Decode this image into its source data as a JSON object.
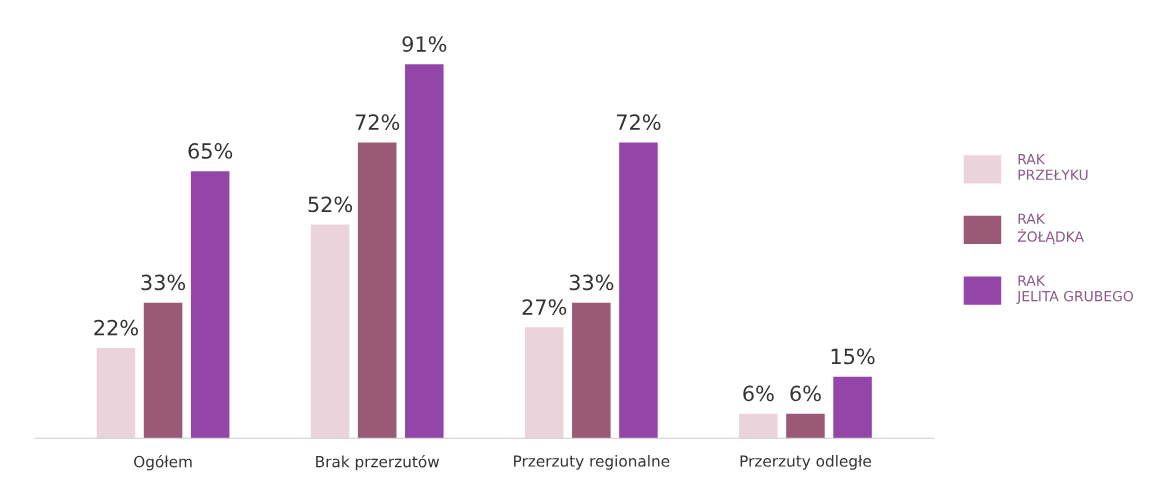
{
  "chart_data": {
    "type": "bar",
    "categories": [
      "Ogółem",
      "Brak przerzutów",
      "Przerzuty regionalne",
      "Przerzuty odległe"
    ],
    "series": [
      {
        "name": "RAK\nPRZEŁYKU",
        "color": "#ebd3dc",
        "values": [
          22,
          52,
          27,
          6
        ],
        "value_labels": [
          "22%",
          "52%",
          "27%",
          "6%"
        ]
      },
      {
        "name": "RAK\nŻOŁĄDKA",
        "color": "#9a5a75",
        "values": [
          33,
          72,
          33,
          6
        ],
        "value_labels": [
          "33%",
          "72%",
          "33%",
          "6%"
        ]
      },
      {
        "name": "RAK\nJELITA GRUBEGO",
        "color": "#9446a8",
        "values": [
          65,
          91,
          72,
          15
        ],
        "value_labels": [
          "65%",
          "91%",
          "72%",
          "15%"
        ]
      }
    ],
    "legend": "right",
    "grid": false
  }
}
